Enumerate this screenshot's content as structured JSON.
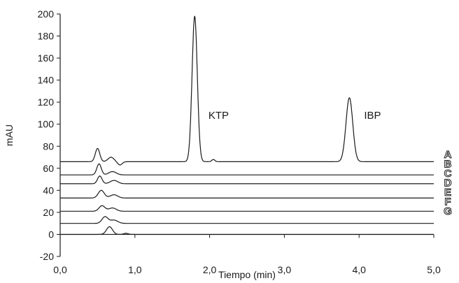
{
  "chart_data": {
    "type": "line",
    "xlabel": "Tiempo (min)",
    "ylabel": "mAU",
    "xlim": [
      0,
      5
    ],
    "ylim": [
      -20,
      200
    ],
    "xticks": [
      0,
      1,
      2,
      3,
      4,
      5
    ],
    "xtick_labels": [
      "0,0",
      "1,0",
      "2,0",
      "3,0",
      "4,0",
      "5,0"
    ],
    "yticks": [
      -20,
      0,
      20,
      40,
      60,
      80,
      100,
      120,
      140,
      160,
      180,
      200
    ],
    "ytick_labels": [
      "-20",
      "0",
      "20",
      "40",
      "60",
      "80",
      "100",
      "120",
      "140",
      "160",
      "180",
      "200"
    ],
    "grid": false,
    "annotations": [
      {
        "text": "KTP",
        "x": 2.12,
        "y": 105
      },
      {
        "text": "IBP",
        "x": 4.18,
        "y": 105
      }
    ],
    "series": [
      {
        "name": "A",
        "baseline": 66,
        "peaks": [
          [
            0.5,
            12,
            0.03
          ],
          [
            0.68,
            4,
            0.04
          ],
          [
            0.8,
            -3,
            0.03
          ],
          [
            1.8,
            132,
            0.035
          ],
          [
            2.05,
            2,
            0.02
          ],
          [
            3.87,
            58,
            0.045
          ]
        ]
      },
      {
        "name": "B",
        "baseline": 54,
        "peaks": [
          [
            0.52,
            10,
            0.03
          ],
          [
            0.7,
            3,
            0.05
          ]
        ]
      },
      {
        "name": "C",
        "baseline": 46,
        "peaks": [
          [
            0.53,
            7,
            0.03
          ],
          [
            0.72,
            3,
            0.05
          ]
        ]
      },
      {
        "name": "D",
        "baseline": 33,
        "peaks": [
          [
            0.55,
            7,
            0.04
          ],
          [
            0.72,
            3,
            0.05
          ]
        ]
      },
      {
        "name": "E",
        "baseline": 21,
        "peaks": [
          [
            0.56,
            5,
            0.04
          ],
          [
            0.7,
            3,
            0.05
          ]
        ]
      },
      {
        "name": "F",
        "baseline": 10,
        "peaks": [
          [
            0.6,
            6,
            0.04
          ],
          [
            0.72,
            3,
            0.05
          ]
        ]
      },
      {
        "name": "G",
        "baseline": 0,
        "peaks": [
          [
            0.66,
            7,
            0.04
          ],
          [
            0.88,
            1,
            0.03
          ]
        ]
      }
    ]
  }
}
